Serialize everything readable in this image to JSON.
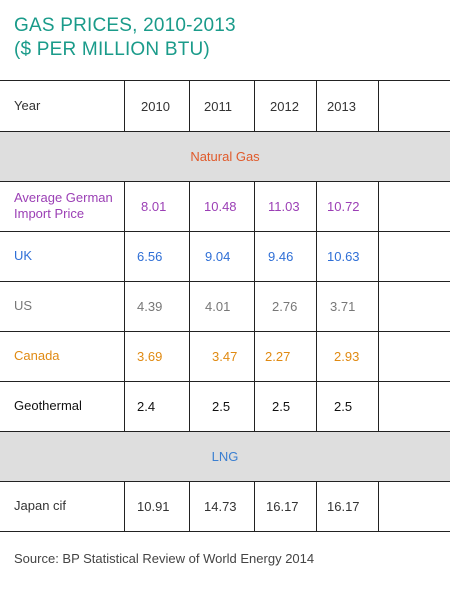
{
  "title": {
    "line1": "GAS PRICES, 2010-2013",
    "line2": "($ PER MILLION BTU)"
  },
  "colors": {
    "title": "#1a9b8a",
    "natural_gas_header": "#e05a2b",
    "lng_header": "#3b7fd1",
    "purple": "#9b3fb5",
    "blue": "#2f6fd6",
    "gray": "#777777",
    "orange": "#e08a12",
    "black": "#111111"
  },
  "chart_data": {
    "type": "table",
    "columns": [
      "Year",
      "2010",
      "2011",
      "2012",
      "2013"
    ],
    "sections": [
      {
        "name": "Natural Gas",
        "rows": [
          {
            "label": "Average German Import Price",
            "values": [
              "8.01",
              "10.48",
              "11.03",
              "10.72"
            ]
          },
          {
            "label": "UK",
            "values": [
              "6.56",
              "9.04",
              "9.46",
              "10.63"
            ]
          },
          {
            "label": "US",
            "values": [
              "4.39",
              "4.01",
              "2.76",
              "3.71"
            ]
          },
          {
            "label": "Canada",
            "values": [
              "3.69",
              "3.47",
              "2.27",
              "2.93"
            ]
          },
          {
            "label": "Geothermal",
            "values": [
              "2.4",
              "2.5",
              "2.5",
              "2.5"
            ]
          }
        ]
      },
      {
        "name": "LNG",
        "rows": [
          {
            "label": "Japan cif",
            "values": [
              "10.91",
              "14.73",
              "16.17",
              "16.17"
            ]
          }
        ]
      }
    ],
    "source": "Source: BP Statistical Review of World Energy 2014"
  }
}
